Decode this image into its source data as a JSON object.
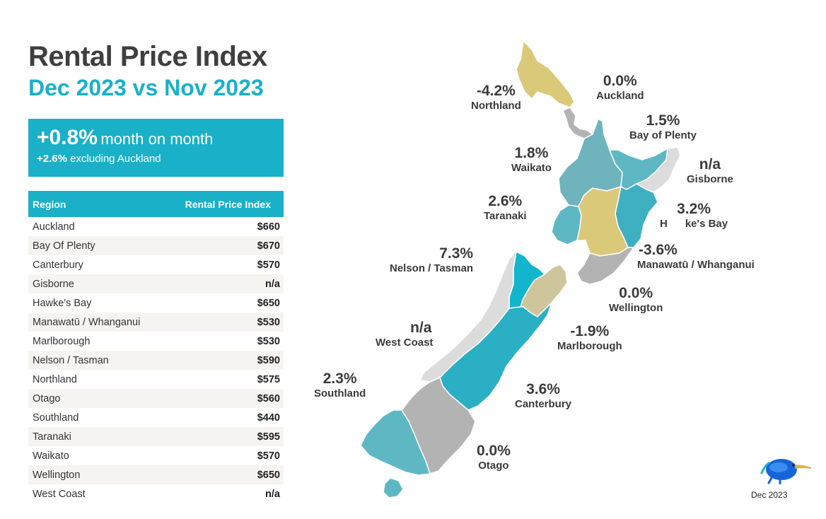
{
  "header": {
    "title": "Rental Price Index",
    "subtitle": "Dec 2023 vs Nov 2023"
  },
  "banner": {
    "headline_value": "+0.8%",
    "headline_text": "month on month",
    "sub_value": "+2.6%",
    "sub_text": "excluding Auckland"
  },
  "table": {
    "col_region": "Region",
    "col_index": "Rental Price Index",
    "rows": [
      {
        "region": "Auckland",
        "value": "$660"
      },
      {
        "region": "Bay Of Plenty",
        "value": "$670"
      },
      {
        "region": "Canterbury",
        "value": "$570"
      },
      {
        "region": "Gisborne",
        "value": "n/a"
      },
      {
        "region": "Hawke's Bay",
        "value": "$650"
      },
      {
        "region": "Manawatū / Whanganui",
        "value": "$530"
      },
      {
        "region": "Marlborough",
        "value": "$530"
      },
      {
        "region": "Nelson / Tasman",
        "value": "$590"
      },
      {
        "region": "Northland",
        "value": "$575"
      },
      {
        "region": "Otago",
        "value": "$560"
      },
      {
        "region": "Southland",
        "value": "$440"
      },
      {
        "region": "Taranaki",
        "value": "$595"
      },
      {
        "region": "Waikato",
        "value": "$570"
      },
      {
        "region": "Wellington",
        "value": "$650"
      },
      {
        "region": "West Coast",
        "value": "n/a"
      }
    ]
  },
  "map_labels": {
    "northland": {
      "pct": "-4.2%",
      "name": "Northland"
    },
    "auckland": {
      "pct": "0.0%",
      "name": "Auckland"
    },
    "bay_of_plenty": {
      "pct": "1.5%",
      "name": "Bay of Plenty"
    },
    "gisborne": {
      "pct": "n/a",
      "name": "Gisborne"
    },
    "waikato": {
      "pct": "1.8%",
      "name": "Waikato"
    },
    "taranaki": {
      "pct": "2.6%",
      "name": "Taranaki"
    },
    "hawkes_bay": {
      "pct": "3.2%",
      "name": "H      ke's Bay"
    },
    "manawatu": {
      "pct": "-3.6%",
      "name": "Manawatū / Whanganui"
    },
    "nelson": {
      "pct": "7.3%",
      "name": "Nelson / Tasman"
    },
    "wellington": {
      "pct": "0.0%",
      "name": "Wellington"
    },
    "west_coast": {
      "pct": "n/a",
      "name": "West Coast"
    },
    "marlborough": {
      "pct": "-1.9%",
      "name": "Marlborough"
    },
    "southland": {
      "pct": "2.3%",
      "name": "Southland"
    },
    "canterbury": {
      "pct": "3.6%",
      "name": "Canterbury"
    },
    "otago": {
      "pct": "0.0%",
      "name": "Otago"
    }
  },
  "colors": {
    "accent": "#1ab0c8",
    "negative_yellow": "#dbc97a",
    "neutral_grey": "#b3b3b3",
    "na_light": "#dcdcdc",
    "teal_mid": "#5eb8c4",
    "teal_strong": "#2aafc4",
    "teal_top": "#12b5cc",
    "tan": "#cfc59c"
  },
  "footer": {
    "date": "Dec 2023",
    "logo_icon": "kiwi-bird-icon"
  }
}
